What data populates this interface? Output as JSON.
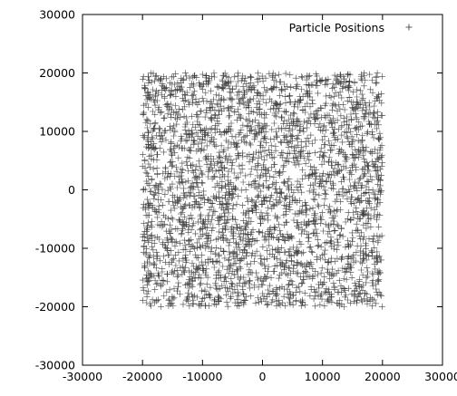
{
  "chart_data": {
    "type": "scatter",
    "title": "",
    "xlabel": "",
    "ylabel": "",
    "xlim": [
      -30000,
      30000
    ],
    "ylim": [
      -30000,
      30000
    ],
    "xticks": [
      -30000,
      -20000,
      -10000,
      0,
      10000,
      20000,
      30000
    ],
    "yticks": [
      -30000,
      -20000,
      -10000,
      0,
      10000,
      20000,
      30000
    ],
    "xtick_labels": [
      "-30000",
      "-20000",
      "-10000",
      "0",
      "10000",
      "20000",
      "30000"
    ],
    "ytick_labels": [
      "-30000",
      "-20000",
      "-10000",
      "0",
      "10000",
      "20000",
      "30000"
    ],
    "grid": false,
    "legend_position": "top-right",
    "series": [
      {
        "name": "Particle Positions",
        "marker": "plus",
        "color": "#000000",
        "distribution": "uniform",
        "x_range": [
          -20000,
          20000
        ],
        "y_range": [
          -20000,
          20000
        ],
        "count": 3000
      }
    ]
  }
}
